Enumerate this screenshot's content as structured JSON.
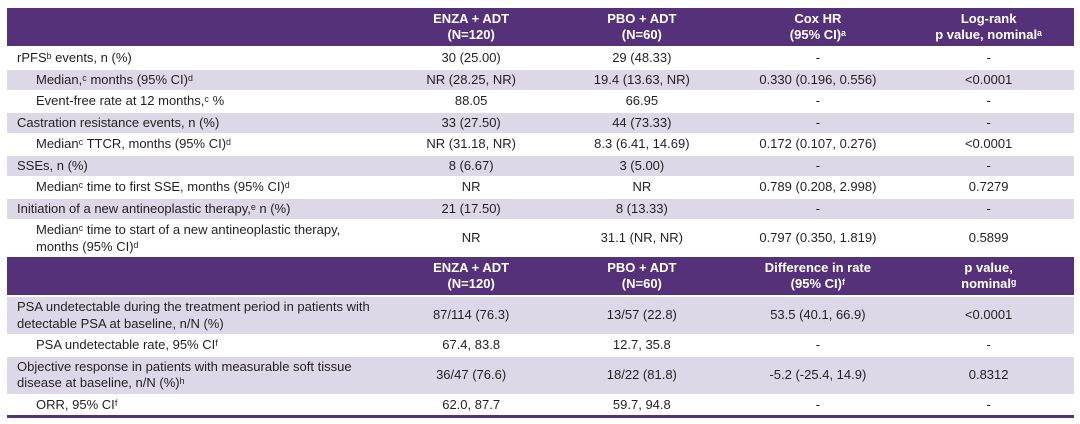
{
  "colors": {
    "header_bg": "#553179",
    "alt_row_bg": "#dcd8e8",
    "bottom_border": "#553179",
    "text": "#231f20",
    "header_text": "#ffffff"
  },
  "section1": {
    "headers": [
      "",
      "ENZA + ADT\n(N=120)",
      "PBO + ADT\n(N=60)",
      "Cox HR\n(95% CI)ᵃ",
      "Log-rank\np value, nominalᵃ"
    ],
    "rows": [
      {
        "label": "rPFSᵇ events, n (%)",
        "cells": [
          "30 (25.00)",
          "29 (48.33)",
          "-",
          "-"
        ]
      },
      {
        "label": "Median,ᶜ months (95% CI)ᵈ",
        "cells": [
          "NR (28.25, NR)",
          "19.4 (13.63, NR)",
          "0.330 (0.196, 0.556)",
          "<0.0001"
        ]
      },
      {
        "label": "Event-free rate at 12 months,ᶜ %",
        "cells": [
          "88.05",
          "66.95",
          "-",
          "-"
        ]
      },
      {
        "label": "Castration resistance events, n (%)",
        "cells": [
          "33 (27.50)",
          "44 (73.33)",
          "-",
          "-"
        ]
      },
      {
        "label": "Medianᶜ TTCR, months (95% CI)ᵈ",
        "cells": [
          "NR (31.18, NR)",
          "8.3 (6.41, 14.69)",
          "0.172 (0.107, 0.276)",
          "<0.0001"
        ]
      },
      {
        "label": "SSEs, n (%)",
        "cells": [
          "8 (6.67)",
          "3 (5.00)",
          "-",
          "-"
        ]
      },
      {
        "label": "Medianᶜ time to first SSE, months (95% CI)ᵈ",
        "cells": [
          "NR",
          "NR",
          "0.789 (0.208, 2.998)",
          "0.7279"
        ]
      },
      {
        "label": "Initiation of a new antineoplastic therapy,ᵉ n (%)",
        "cells": [
          "21 (17.50)",
          "8 (13.33)",
          "-",
          "-"
        ]
      },
      {
        "label": "Medianᶜ time to start of a new antineoplastic therapy, months (95% CI)ᵈ",
        "cells": [
          "NR",
          "31.1 (NR, NR)",
          "0.797 (0.350, 1.819)",
          "0.5899"
        ]
      }
    ]
  },
  "section2": {
    "headers": [
      "",
      "ENZA + ADT\n(N=120)",
      "PBO + ADT\n(N=60)",
      "Difference in rate\n(95% CI)ᶠ",
      "p value,\nnominalᵍ"
    ],
    "rows": [
      {
        "label": "PSA undetectable during the treatment period in patients with detectable PSA at baseline, n/N (%)",
        "cells": [
          "87/114 (76.3)",
          "13/57 (22.8)",
          "53.5 (40.1, 66.9)",
          "<0.0001"
        ]
      },
      {
        "label": "PSA undetectable rate, 95% CIᶠ",
        "cells": [
          "67.4, 83.8",
          "12.7, 35.8",
          "-",
          "-"
        ]
      },
      {
        "label": "Objective response in patients with measurable soft tissue disease at baseline, n/N (%)ʰ",
        "cells": [
          "36/47 (76.6)",
          "18/22 (81.8)",
          "-5.2 (-25.4, 14.9)",
          "0.8312"
        ]
      },
      {
        "label": "ORR, 95% CIᶠ",
        "cells": [
          "62.0, 87.7",
          "59.7, 94.8",
          "-",
          "-"
        ]
      }
    ]
  }
}
